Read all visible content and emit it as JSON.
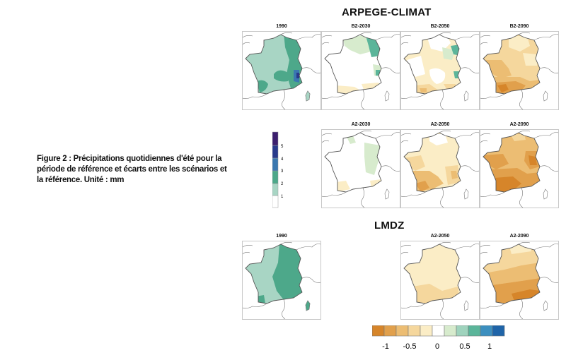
{
  "titles": {
    "arpege": "ARPEGE-CLIMAT",
    "lmdz": "LMDZ"
  },
  "caption": "Figure 2 : Précipitations quotidiennes d'été pour la période de référence et écarts entre les scénarios et la référence. Unité : mm",
  "panels": {
    "arpege_1990": "1990",
    "arpege_b2_2030": "B2-2030",
    "arpege_b2_2050": "B2-2050",
    "arpege_b2_2090": "B2-2090",
    "arpege_a2_2030": "A2-2030",
    "arpege_a2_2050": "A2-2050",
    "arpege_a2_2090": "A2-2090",
    "lmdz_1990": "1990",
    "lmdz_a2_2050": "A2-2050",
    "lmdz_a2_2090": "A2-2090"
  },
  "abs_legend": {
    "ticks": [
      "1",
      "2",
      "3",
      "4",
      "5"
    ],
    "colors": [
      "#ffffff",
      "#a8d5c4",
      "#4da88a",
      "#3a78b0",
      "#283a8c",
      "#3c1f6e"
    ]
  },
  "diff_legend": {
    "ticks": [
      "-1",
      "-0.5",
      "0",
      "0.5",
      "1"
    ],
    "colors": [
      "#d6852a",
      "#e1a04c",
      "#ecbd73",
      "#f5d79d",
      "#fbedc6",
      "#ffffff",
      "#d7ebcd",
      "#9fd3bd",
      "#5bb59a",
      "#3c8fbf",
      "#1f64a8"
    ]
  }
}
